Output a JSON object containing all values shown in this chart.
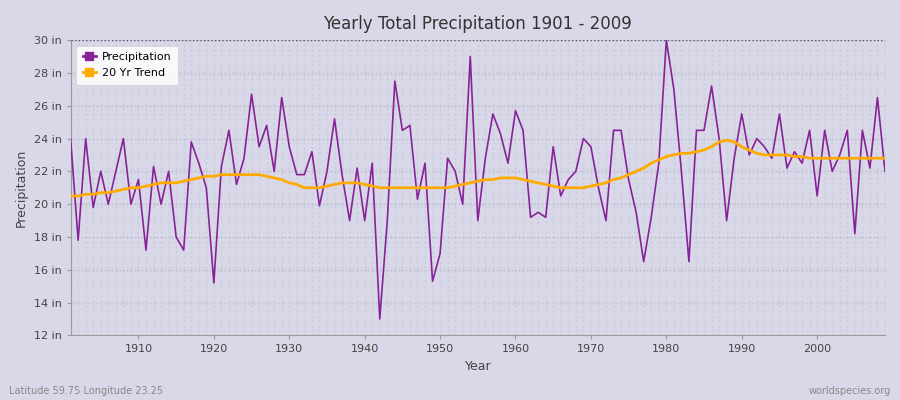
{
  "title": "Yearly Total Precipitation 1901 - 2009",
  "xlabel": "Year",
  "ylabel": "Precipitation",
  "footnote_left": "Latitude 59.75 Longitude 23.25",
  "footnote_right": "worldspecies.org",
  "bg_color": "#d8d8e8",
  "plot_bg_color": "#d8d8e8",
  "precip_color": "#882299",
  "trend_color": "#ffaa00",
  "ylim": [
    12,
    30
  ],
  "yticks": [
    12,
    14,
    16,
    18,
    20,
    22,
    24,
    26,
    28,
    30
  ],
  "ytick_labels": [
    "12 in",
    "14 in",
    "16 in",
    "18 in",
    "20 in",
    "22 in",
    "24 in",
    "26 in",
    "28 in",
    "30 in"
  ],
  "years": [
    1901,
    1902,
    1903,
    1904,
    1905,
    1906,
    1907,
    1908,
    1909,
    1910,
    1911,
    1912,
    1913,
    1914,
    1915,
    1916,
    1917,
    1918,
    1919,
    1920,
    1921,
    1922,
    1923,
    1924,
    1925,
    1926,
    1927,
    1928,
    1929,
    1930,
    1931,
    1932,
    1933,
    1934,
    1935,
    1936,
    1937,
    1938,
    1939,
    1940,
    1941,
    1942,
    1943,
    1944,
    1945,
    1946,
    1947,
    1948,
    1949,
    1950,
    1951,
    1952,
    1953,
    1954,
    1955,
    1956,
    1957,
    1958,
    1959,
    1960,
    1961,
    1962,
    1963,
    1964,
    1965,
    1966,
    1967,
    1968,
    1969,
    1970,
    1971,
    1972,
    1973,
    1974,
    1975,
    1976,
    1977,
    1978,
    1979,
    1980,
    1981,
    1982,
    1983,
    1984,
    1985,
    1986,
    1987,
    1988,
    1989,
    1990,
    1991,
    1992,
    1993,
    1994,
    1995,
    1996,
    1997,
    1998,
    1999,
    2000,
    2001,
    2002,
    2003,
    2004,
    2005,
    2006,
    2007,
    2008,
    2009
  ],
  "precip": [
    24.0,
    17.8,
    24.0,
    19.8,
    22.0,
    20.0,
    22.0,
    24.0,
    20.0,
    21.5,
    17.2,
    22.3,
    20.0,
    22.0,
    18.0,
    17.2,
    23.8,
    22.5,
    21.0,
    15.2,
    22.3,
    24.5,
    21.2,
    22.8,
    26.7,
    23.5,
    24.8,
    22.0,
    26.5,
    23.5,
    21.8,
    21.8,
    23.2,
    19.9,
    22.0,
    25.2,
    21.8,
    19.0,
    22.2,
    19.0,
    22.5,
    13.0,
    19.0,
    27.5,
    24.5,
    24.8,
    20.3,
    22.5,
    15.3,
    17.0,
    22.8,
    22.0,
    20.0,
    29.0,
    19.0,
    22.8,
    25.5,
    24.3,
    22.5,
    25.7,
    24.5,
    19.2,
    19.5,
    19.2,
    23.5,
    20.5,
    21.5,
    22.0,
    24.0,
    23.5,
    21.0,
    19.0,
    24.5,
    24.5,
    21.5,
    19.5,
    16.5,
    19.2,
    22.5,
    30.0,
    27.0,
    22.0,
    16.5,
    24.5,
    24.5,
    27.2,
    24.0,
    19.0,
    22.8,
    25.5,
    23.0,
    24.0,
    23.5,
    22.8,
    25.5,
    22.2,
    23.2,
    22.5,
    24.5,
    20.5,
    24.5,
    22.0,
    23.0,
    24.5,
    18.2,
    24.5,
    22.2,
    26.5,
    22.0
  ],
  "trend": [
    20.5,
    20.5,
    20.6,
    20.6,
    20.7,
    20.7,
    20.8,
    20.9,
    21.0,
    21.0,
    21.1,
    21.2,
    21.3,
    21.3,
    21.3,
    21.4,
    21.5,
    21.6,
    21.7,
    21.7,
    21.8,
    21.8,
    21.8,
    21.8,
    21.8,
    21.8,
    21.7,
    21.6,
    21.5,
    21.3,
    21.2,
    21.0,
    21.0,
    21.0,
    21.1,
    21.2,
    21.3,
    21.3,
    21.3,
    21.2,
    21.1,
    21.0,
    21.0,
    21.0,
    21.0,
    21.0,
    21.0,
    21.0,
    21.0,
    21.0,
    21.0,
    21.1,
    21.2,
    21.3,
    21.4,
    21.5,
    21.5,
    21.6,
    21.6,
    21.6,
    21.5,
    21.4,
    21.3,
    21.2,
    21.1,
    21.0,
    21.0,
    21.0,
    21.0,
    21.1,
    21.2,
    21.3,
    21.5,
    21.6,
    21.8,
    22.0,
    22.2,
    22.5,
    22.7,
    22.9,
    23.0,
    23.1,
    23.1,
    23.2,
    23.3,
    23.5,
    23.8,
    23.9,
    23.8,
    23.5,
    23.3,
    23.1,
    23.0,
    23.0,
    23.0,
    23.0,
    22.9,
    22.9,
    22.8,
    22.8,
    22.8,
    22.8,
    22.8,
    22.8,
    22.8,
    22.8,
    22.8,
    22.8,
    22.8
  ]
}
